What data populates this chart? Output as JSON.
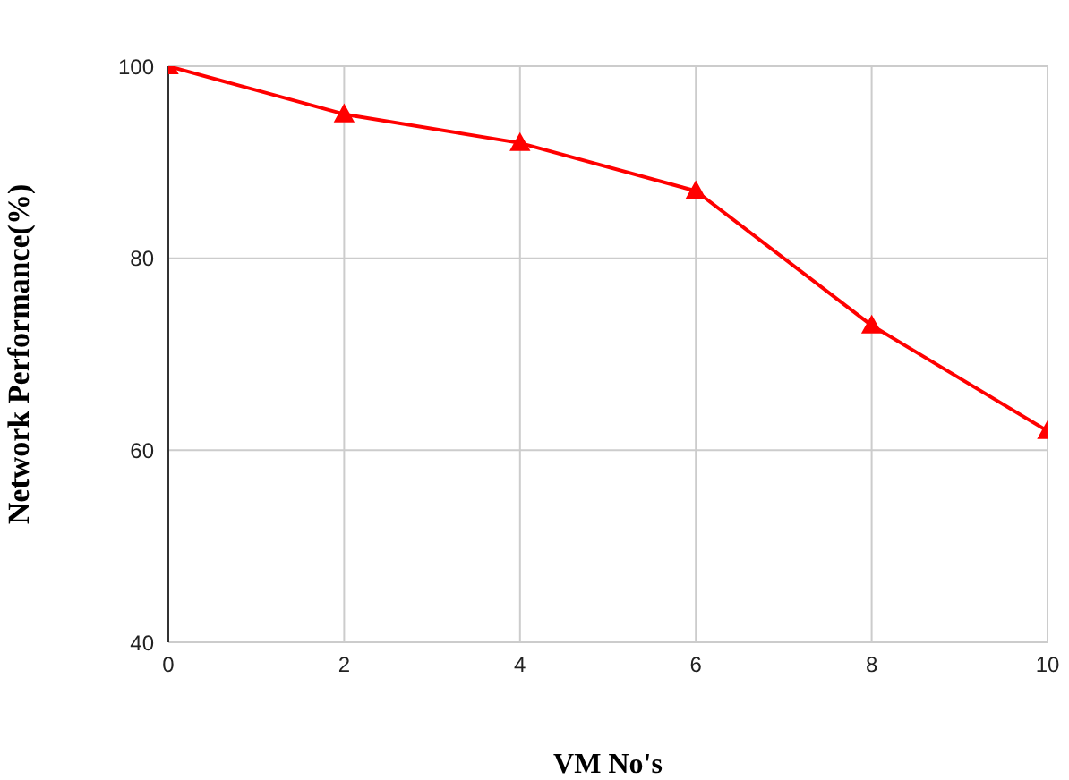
{
  "chart_data": {
    "type": "line",
    "xlabel": "VM No's",
    "ylabel": "Network Performance(%)",
    "x": [
      0,
      2,
      4,
      6,
      8,
      10
    ],
    "series": [
      {
        "color": "#ff0000",
        "values": [
          100,
          95,
          92,
          87,
          73,
          62
        ]
      }
    ],
    "xlim": [
      0,
      10
    ],
    "xticks": [
      0,
      2,
      4,
      6,
      8,
      10
    ],
    "ylim": [
      40,
      100
    ],
    "yticks": [
      40,
      60,
      80,
      100
    ],
    "grid": true,
    "marker": "triangle",
    "line_style": "solid"
  }
}
